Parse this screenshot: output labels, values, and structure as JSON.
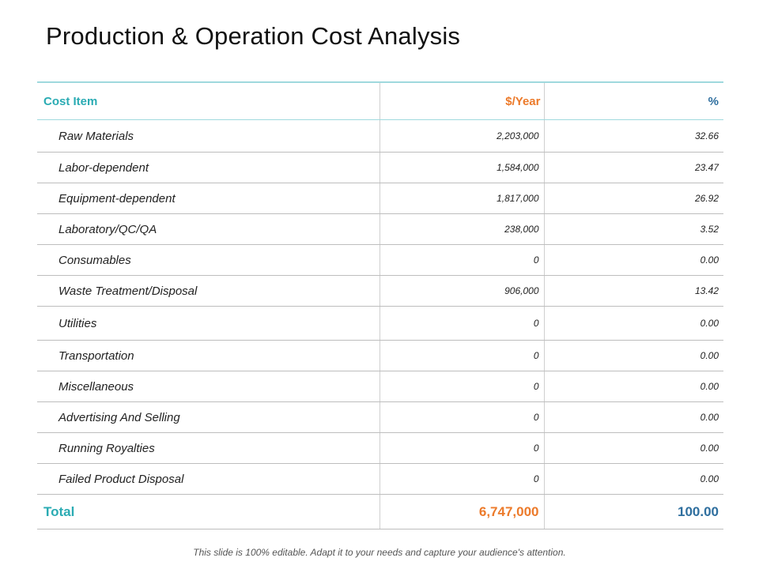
{
  "title": "Production & Operation Cost Analysis",
  "table": {
    "headers": {
      "item": "Cost Item",
      "year": "$/Year",
      "pct": "%"
    },
    "rows": [
      {
        "item": "Raw Materials",
        "year": "2,203,000",
        "pct": "32.66"
      },
      {
        "item": "Labor-dependent",
        "year": "1,584,000",
        "pct": "23.47"
      },
      {
        "item": "Equipment-dependent",
        "year": "1,817,000",
        "pct": "26.92"
      },
      {
        "item": "Laboratory/QC/QA",
        "year": "238,000",
        "pct": "3.52"
      },
      {
        "item": "Consumables",
        "year": "0",
        "pct": "0.00"
      },
      {
        "item": "Waste Treatment/Disposal",
        "year": "906,000",
        "pct": "13.42"
      },
      {
        "item": "Utilities",
        "year": "0",
        "pct": "0.00"
      },
      {
        "item": "Transportation",
        "year": "0",
        "pct": "0.00"
      },
      {
        "item": "Miscellaneous",
        "year": "0",
        "pct": "0.00"
      },
      {
        "item": "Advertising And Selling",
        "year": "0",
        "pct": "0.00"
      },
      {
        "item": "Running Royalties",
        "year": "0",
        "pct": "0.00"
      },
      {
        "item": "Failed Product Disposal",
        "year": "0",
        "pct": "0.00"
      }
    ],
    "total": {
      "label": "Total",
      "year": "6,747,000",
      "pct": "100.00"
    }
  },
  "footnote": "This slide is 100% editable. Adapt it to your needs and capture your audience's attention.",
  "colors": {
    "teal": "#2aabb3",
    "orange": "#ec7a2a",
    "blue": "#2e6e9e"
  }
}
